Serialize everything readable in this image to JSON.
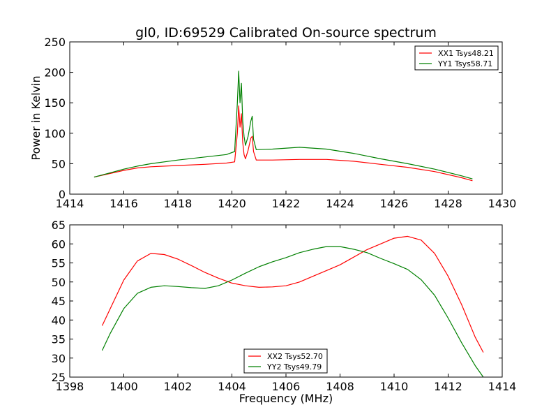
{
  "chart_data": [
    {
      "type": "line",
      "title": "gl0, ID:69529 Calibrated On-source spectrum",
      "xlabel": "",
      "ylabel": "Power in Kelvin",
      "xlim": [
        1414,
        1430
      ],
      "ylim": [
        0,
        250
      ],
      "xticks": [
        "1414",
        "1416",
        "1418",
        "1420",
        "1422",
        "1424",
        "1426",
        "1428",
        "1430"
      ],
      "yticks": [
        "0",
        "50",
        "100",
        "150",
        "200",
        "250"
      ],
      "legend_position": "top-right",
      "grid": false,
      "series": [
        {
          "name": "XX1 Tsys48.21",
          "color": "#ff0000",
          "x": [
            1414.9,
            1415.5,
            1416.0,
            1416.5,
            1417.0,
            1418.0,
            1419.0,
            1419.8,
            1420.1,
            1420.2,
            1420.25,
            1420.3,
            1420.35,
            1420.4,
            1420.45,
            1420.5,
            1420.6,
            1420.7,
            1420.75,
            1420.8,
            1420.9,
            1421.5,
            1422.5,
            1423.5,
            1424.5,
            1425.5,
            1426.5,
            1427.5,
            1428.5,
            1428.9
          ],
          "values": [
            28,
            34,
            39,
            43,
            45,
            47,
            49,
            51,
            53,
            100,
            145,
            110,
            132,
            85,
            65,
            58,
            72,
            92,
            95,
            70,
            56,
            56,
            57,
            57,
            54,
            49,
            44,
            37,
            27,
            22
          ]
        },
        {
          "name": "YY1 Tsys58.71",
          "color": "#008000",
          "x": [
            1414.9,
            1415.5,
            1416.0,
            1416.5,
            1417.0,
            1418.0,
            1419.0,
            1419.8,
            1420.1,
            1420.2,
            1420.25,
            1420.3,
            1420.35,
            1420.4,
            1420.45,
            1420.5,
            1420.6,
            1420.7,
            1420.75,
            1420.8,
            1420.9,
            1421.5,
            1422.5,
            1423.5,
            1424.5,
            1425.5,
            1426.5,
            1427.5,
            1428.5,
            1428.9
          ],
          "values": [
            28,
            35,
            41,
            46,
            50,
            56,
            61,
            65,
            70,
            150,
            202,
            150,
            182,
            120,
            95,
            80,
            95,
            120,
            128,
            90,
            73,
            74,
            77,
            74,
            67,
            58,
            50,
            41,
            30,
            25
          ]
        }
      ]
    },
    {
      "type": "line",
      "title": "",
      "xlabel": "Frequency (MHz)",
      "ylabel": "",
      "xlim": [
        1398,
        1414
      ],
      "ylim": [
        25,
        65
      ],
      "xticks": [
        "1398",
        "1400",
        "1402",
        "1404",
        "1406",
        "1408",
        "1410",
        "1412",
        "1414"
      ],
      "yticks": [
        "25",
        "30",
        "35",
        "40",
        "45",
        "50",
        "55",
        "60",
        "65"
      ],
      "legend_position": "lower-center",
      "grid": false,
      "series": [
        {
          "name": "XX2 Tsys52.70",
          "color": "#ff0000",
          "x": [
            1399.2,
            1399.5,
            1400.0,
            1400.5,
            1401.0,
            1401.5,
            1402.0,
            1402.5,
            1403.0,
            1403.5,
            1404.0,
            1404.5,
            1405.0,
            1405.5,
            1406.0,
            1406.5,
            1407.0,
            1407.5,
            1408.0,
            1408.5,
            1409.0,
            1409.5,
            1410.0,
            1410.5,
            1411.0,
            1411.5,
            1412.0,
            1412.5,
            1413.0,
            1413.3
          ],
          "values": [
            38.5,
            43,
            50.5,
            55.5,
            57.5,
            57.2,
            56,
            54.3,
            52.5,
            51,
            49.7,
            49,
            48.6,
            48.7,
            49,
            50,
            51.5,
            53,
            54.5,
            56.5,
            58.5,
            60,
            61.5,
            62,
            61,
            57.5,
            51.5,
            44,
            35.5,
            31.5
          ]
        },
        {
          "name": "YY2 Tsys49.79",
          "color": "#008000",
          "x": [
            1399.2,
            1399.5,
            1400.0,
            1400.5,
            1401.0,
            1401.5,
            1402.0,
            1402.5,
            1403.0,
            1403.5,
            1404.0,
            1404.5,
            1405.0,
            1405.5,
            1406.0,
            1406.5,
            1407.0,
            1407.5,
            1408.0,
            1408.5,
            1409.0,
            1409.5,
            1410.0,
            1410.5,
            1411.0,
            1411.5,
            1412.0,
            1412.5,
            1413.0,
            1413.3
          ],
          "values": [
            32,
            36.5,
            43,
            47,
            48.6,
            49,
            48.8,
            48.5,
            48.3,
            49,
            50.5,
            52.3,
            54,
            55.3,
            56.4,
            57.7,
            58.6,
            59.3,
            59.3,
            58.6,
            57.7,
            56.2,
            54.8,
            53.3,
            50.6,
            46.5,
            40.5,
            34,
            28,
            25
          ]
        }
      ]
    }
  ]
}
